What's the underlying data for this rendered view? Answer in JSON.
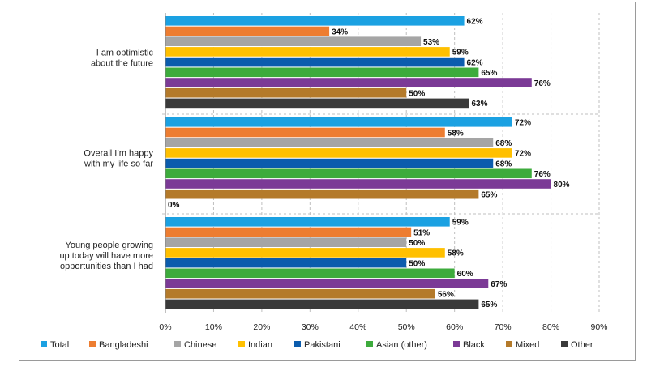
{
  "chart_data": {
    "type": "bar",
    "orientation": "horizontal",
    "categories": [
      [
        "I am optimistic",
        "about the future"
      ],
      [
        "Overall I’m happy",
        "with my life so far"
      ],
      [
        "Young people growing",
        "up today will have more",
        "opportunities than I had"
      ]
    ],
    "series": [
      {
        "name": "Total",
        "color": "#1ba1e2",
        "values": [
          62,
          72,
          59
        ]
      },
      {
        "name": "Bangladeshi",
        "color": "#ed7d31",
        "values": [
          34,
          58,
          51
        ]
      },
      {
        "name": "Chinese",
        "color": "#a5a5a5",
        "values": [
          53,
          68,
          50
        ]
      },
      {
        "name": "Indian",
        "color": "#ffc000",
        "values": [
          59,
          72,
          58
        ]
      },
      {
        "name": "Pakistani",
        "color": "#0b5cad",
        "values": [
          62,
          68,
          50
        ]
      },
      {
        "name": "Asian (other)",
        "color": "#3dab3c",
        "values": [
          65,
          76,
          60
        ]
      },
      {
        "name": "Black",
        "color": "#7b3a96",
        "values": [
          76,
          80,
          67
        ]
      },
      {
        "name": "Mixed",
        "color": "#b47a2a",
        "values": [
          50,
          65,
          56
        ]
      },
      {
        "name": "Other",
        "color": "#3a3a3a",
        "values": [
          63,
          0,
          65
        ]
      }
    ],
    "xlim": [
      0,
      90
    ],
    "xticks": [
      "0%",
      "10%",
      "20%",
      "30%",
      "40%",
      "50%",
      "60%",
      "70%",
      "80%",
      "90%"
    ],
    "value_suffix": "%",
    "grid": "vertical-dashed",
    "legend_position": "bottom"
  }
}
